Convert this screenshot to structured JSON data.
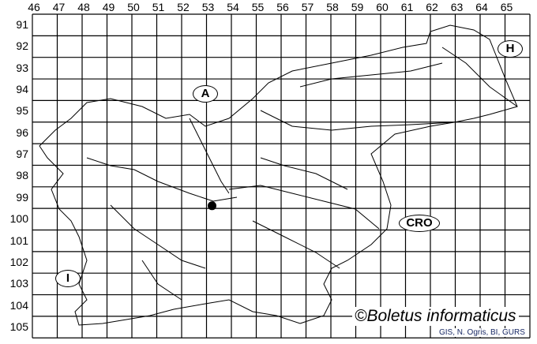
{
  "grid": {
    "columns": [
      "46",
      "47",
      "48",
      "49",
      "50",
      "51",
      "52",
      "53",
      "54",
      "55",
      "56",
      "57",
      "58",
      "59",
      "60",
      "61",
      "62",
      "63",
      "64",
      "65"
    ],
    "rows": [
      "91",
      "92",
      "93",
      "94",
      "95",
      "96",
      "97",
      "98",
      "99",
      "100",
      "101",
      "102",
      "103",
      "104",
      "105"
    ]
  },
  "countries": [
    {
      "label": "A"
    },
    {
      "label": "H"
    },
    {
      "label": "CRO"
    },
    {
      "label": "I"
    }
  ],
  "records": [
    {
      "column": "53",
      "row": "99",
      "marker": "filled-circle",
      "color": "#000000"
    }
  ],
  "copyright": "©Boletus informaticus",
  "credit": "GIS, N. Ogris, BI, GURS",
  "colors": {
    "grid": "#000000",
    "rivers": "#000000",
    "background": "#ffffff"
  }
}
